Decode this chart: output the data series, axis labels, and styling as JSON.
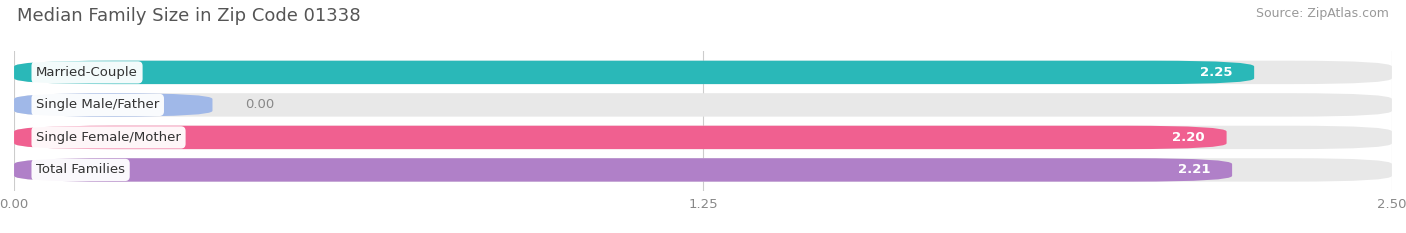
{
  "title": "Median Family Size in Zip Code 01338",
  "source": "Source: ZipAtlas.com",
  "categories": [
    "Married-Couple",
    "Single Male/Father",
    "Single Female/Mother",
    "Total Families"
  ],
  "values": [
    2.25,
    0.0,
    2.2,
    2.21
  ],
  "bar_colors": [
    "#2ab8b8",
    "#a0b8e8",
    "#f06090",
    "#b080c8"
  ],
  "bg_track_color": "#e8e8e8",
  "value_labels": [
    "2.25",
    "0.00",
    "2.20",
    "2.21"
  ],
  "xlim": [
    0,
    2.5
  ],
  "xticks": [
    0.0,
    1.25,
    2.5
  ],
  "xticklabels": [
    "0.00",
    "1.25",
    "2.50"
  ],
  "figsize": [
    14.06,
    2.33
  ],
  "dpi": 100,
  "bar_height": 0.72,
  "title_fontsize": 13,
  "source_fontsize": 9,
  "label_fontsize": 9.5,
  "value_fontsize": 9.5,
  "tick_fontsize": 9.5,
  "background_color": "#ffffff",
  "rounding_size": 0.18
}
